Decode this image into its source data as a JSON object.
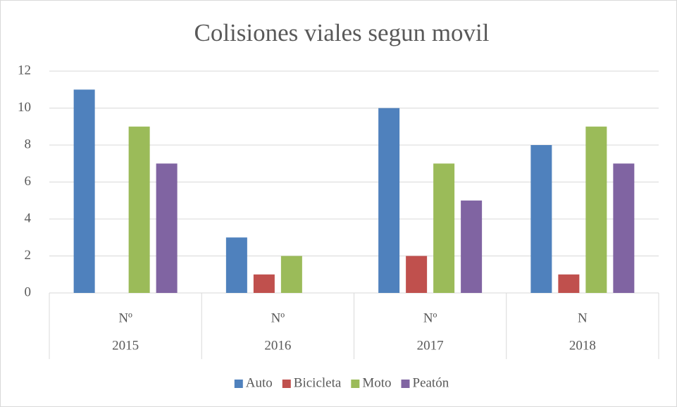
{
  "chart_data": {
    "type": "bar",
    "title": "Colisiones viales segun movil",
    "categories": [
      "2015",
      "2016",
      "2017",
      "2018"
    ],
    "category_sublabels": [
      "Nº",
      "Nº",
      "Nº",
      "N"
    ],
    "series": [
      {
        "name": "Auto",
        "color": "#4f81bd",
        "values": [
          11,
          3,
          10,
          8
        ]
      },
      {
        "name": "Bicicleta",
        "color": "#c0504d",
        "values": [
          null,
          1,
          2,
          1
        ]
      },
      {
        "name": "Moto",
        "color": "#9bbb59",
        "values": [
          9,
          2,
          7,
          9
        ]
      },
      {
        "name": "Peatón",
        "color": "#8064a2",
        "values": [
          7,
          null,
          5,
          7
        ]
      }
    ],
    "ylim": [
      0,
      12
    ],
    "yticks": [
      0,
      2,
      4,
      6,
      8,
      10,
      12
    ],
    "grid": true,
    "legend": "bottom"
  }
}
